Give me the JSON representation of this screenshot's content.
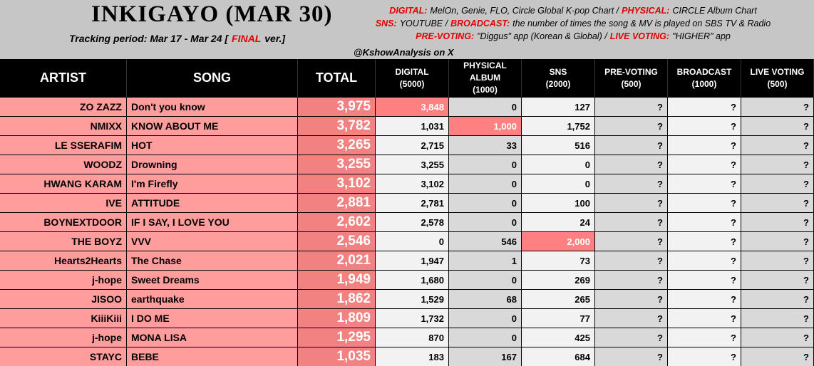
{
  "header": {
    "title": "INKIGAYO (MAR 30)",
    "tracking": {
      "before": "Tracking period: Mar 17 - Mar 24 [",
      "highlight": "FINAL",
      "after": "ver.]"
    },
    "legend": [
      [
        {
          "label": "DIGITAL:",
          "text": "MelOn, Genie, FLO, Circle Global K-pop Chart /"
        },
        {
          "label": "PHYSICAL:",
          "text": "CIRCLE Album Chart"
        }
      ],
      [
        {
          "label": "SNS:",
          "text": "YOUTUBE /"
        },
        {
          "label": "BROADCAST:",
          "text": "the number of times the song & MV is played on SBS TV & Radio"
        }
      ],
      [
        {
          "label": "PRE-VOTING:",
          "text": "\"Diggus\" app (Korean & Global) /"
        },
        {
          "label": "LIVE VOTING:",
          "text": "\"HIGHER\" app"
        }
      ]
    ],
    "credit": "@KshowAnalysis on X"
  },
  "table": {
    "columns": [
      [
        "ARTIST"
      ],
      [
        "SONG"
      ],
      [
        "TOTAL"
      ],
      [
        "DIGITAL",
        "(5000)"
      ],
      [
        "PHYSICAL",
        "ALBUM",
        "(1000)"
      ],
      [
        "SNS",
        "(2000)"
      ],
      [
        "PRE-VOTING",
        "(500)"
      ],
      [
        "BROADCAST",
        "(1000)"
      ],
      [
        "LIVE VOTING",
        "(500)"
      ]
    ],
    "rows": [
      [
        "ZO ZAZZ",
        "Don't you know",
        "3,975",
        "3,848",
        "0",
        "127",
        "?",
        "?",
        "?"
      ],
      [
        "NMIXX",
        "KNOW ABOUT ME",
        "3,782",
        "1,031",
        "1,000",
        "1,752",
        "?",
        "?",
        "?"
      ],
      [
        "LE SSERAFIM",
        "HOT",
        "3,265",
        "2,715",
        "33",
        "516",
        "?",
        "?",
        "?"
      ],
      [
        "WOODZ",
        "Drowning",
        "3,255",
        "3,255",
        "0",
        "0",
        "?",
        "?",
        "?"
      ],
      [
        "HWANG KARAM",
        "I'm Firefly",
        "3,102",
        "3,102",
        "0",
        "0",
        "?",
        "?",
        "?"
      ],
      [
        "IVE",
        "ATTITUDE",
        "2,881",
        "2,781",
        "0",
        "100",
        "?",
        "?",
        "?"
      ],
      [
        "BOYNEXTDOOR",
        "IF I SAY, I LOVE YOU",
        "2,602",
        "2,578",
        "0",
        "24",
        "?",
        "?",
        "?"
      ],
      [
        "THE BOYZ",
        "VVV",
        "2,546",
        "0",
        "546",
        "2,000",
        "?",
        "?",
        "?"
      ],
      [
        "Hearts2Hearts",
        "The Chase",
        "2,021",
        "1,947",
        "1",
        "73",
        "?",
        "?",
        "?"
      ],
      [
        "j-hope",
        "Sweet Dreams",
        "1,949",
        "1,680",
        "0",
        "269",
        "?",
        "?",
        "?"
      ],
      [
        "JISOO",
        "earthquake",
        "1,862",
        "1,529",
        "68",
        "265",
        "?",
        "?",
        "?"
      ],
      [
        "KiiiKiii",
        "I DO ME",
        "1,809",
        "1,732",
        "0",
        "77",
        "?",
        "?",
        "?"
      ],
      [
        "j-hope",
        "MONA LISA",
        "1,295",
        "870",
        "0",
        "425",
        "?",
        "?",
        "?"
      ],
      [
        "STAYC",
        "BEBE",
        "1,035",
        "183",
        "167",
        "684",
        "?",
        "?",
        "?"
      ]
    ],
    "highlights": [
      [
        0,
        3
      ],
      [
        1,
        4
      ],
      [
        7,
        5
      ]
    ]
  }
}
